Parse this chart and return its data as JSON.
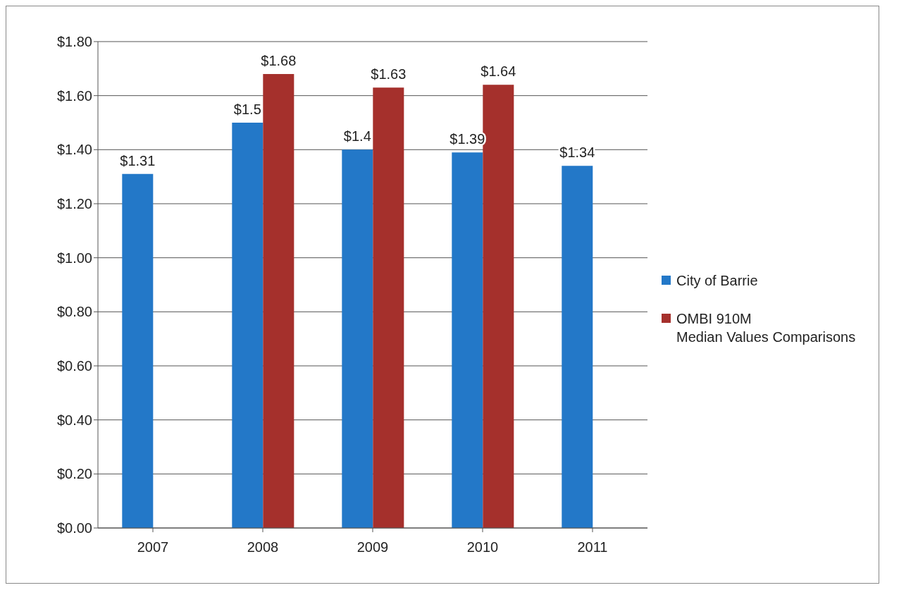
{
  "chart_data": {
    "type": "bar",
    "categories": [
      "2007",
      "2008",
      "2009",
      "2010",
      "2011"
    ],
    "series": [
      {
        "name": "City of Barrie",
        "color": "#2378c8",
        "values": [
          1.31,
          1.5,
          1.4,
          1.39,
          1.34
        ],
        "value_labels": [
          "$1.31",
          "$1.5",
          "$1.4",
          "$1.39",
          "$1.34"
        ]
      },
      {
        "name": "OMBI 910M\nMedian Values Comparisons",
        "color": "#a5302c",
        "values": [
          null,
          1.68,
          1.63,
          1.64,
          null
        ],
        "value_labels": [
          null,
          "$1.68",
          "$1.63",
          "$1.64",
          null
        ]
      }
    ],
    "ylim": [
      0,
      1.8
    ],
    "yticks": [
      {
        "value": 0,
        "label": "$0.00"
      },
      {
        "value": 0.2,
        "label": "$0.20"
      },
      {
        "value": 0.4,
        "label": "$0.40"
      },
      {
        "value": 0.6,
        "label": "$0.60"
      },
      {
        "value": 0.8,
        "label": "$0.80"
      },
      {
        "value": 1,
        "label": "$1.00"
      },
      {
        "value": 1.2,
        "label": "$1.20"
      },
      {
        "value": 1.4,
        "label": "$1.40"
      },
      {
        "value": 1.6,
        "label": "$1.60"
      },
      {
        "value": 1.8,
        "label": "$1.80"
      }
    ],
    "grid": "y",
    "legend": "right"
  }
}
